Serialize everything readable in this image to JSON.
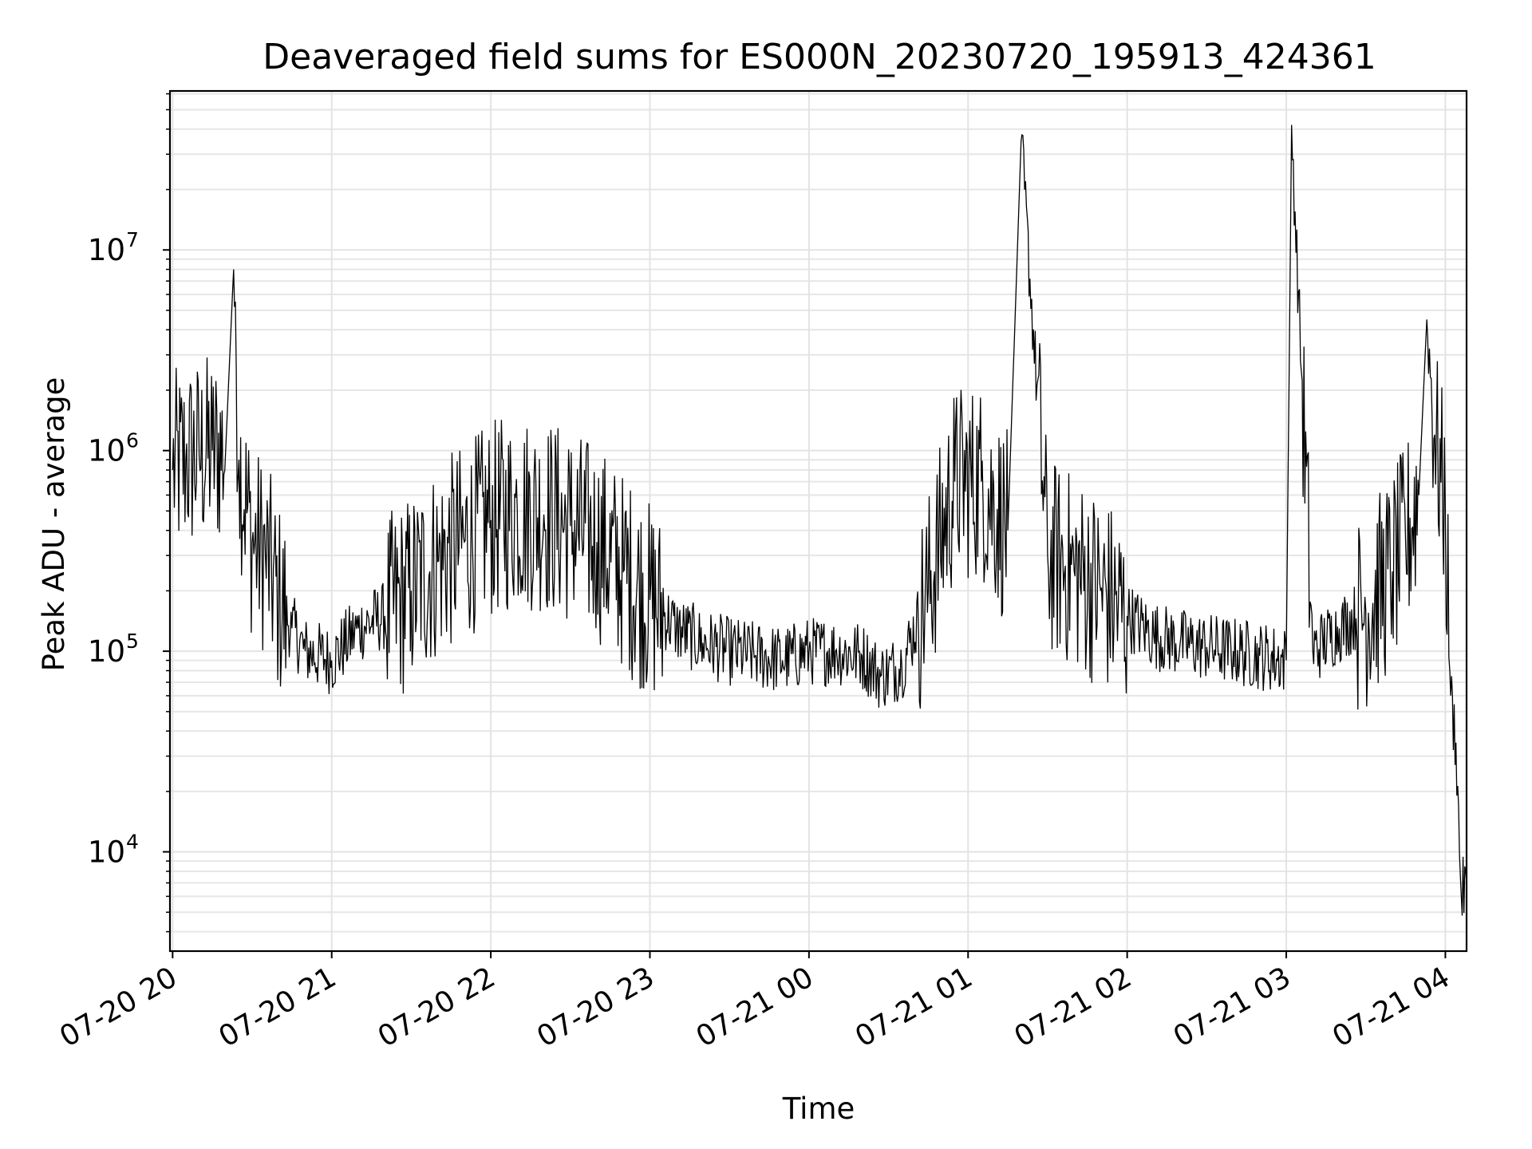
{
  "chart_data": {
    "type": "line",
    "title": "Deaveraged field sums for ES000N_20230720_195913_424361",
    "xlabel": "Time",
    "ylabel": "Peak ADU - average",
    "yscale": "log",
    "ylim": [
      3200,
      62000000
    ],
    "xlim": [
      "07-20 19:59",
      "07-21 04:08"
    ],
    "grid": true,
    "line_color": "#000000",
    "x_ticks": [
      "07-20 20",
      "07-20 21",
      "07-20 22",
      "07-20 23",
      "07-21 00",
      "07-21 01",
      "07-21 02",
      "07-21 03",
      "07-21 04"
    ],
    "y_ticks": [
      {
        "base": "10",
        "exp": "4",
        "value": 10000
      },
      {
        "base": "10",
        "exp": "5",
        "value": 100000
      },
      {
        "base": "10",
        "exp": "6",
        "value": 1000000
      },
      {
        "base": "10",
        "exp": "7",
        "value": 10000000
      }
    ],
    "series": [
      {
        "x": [
          "07-20 20:00",
          "07-20 20:05",
          "07-20 20:10",
          "07-20 20:15",
          "07-20 20:20",
          "07-20 20:23",
          "07-20 20:25",
          "07-20 20:30",
          "07-20 20:35",
          "07-20 20:40",
          "07-20 20:45",
          "07-20 20:50",
          "07-20 21:00",
          "07-20 21:10",
          "07-20 21:20",
          "07-20 21:30",
          "07-20 21:40",
          "07-20 21:50",
          "07-20 22:00",
          "07-20 22:10",
          "07-20 22:20",
          "07-20 22:30",
          "07-20 22:40",
          "07-20 22:50",
          "07-20 23:00",
          "07-20 23:10",
          "07-20 23:20",
          "07-20 23:30",
          "07-20 23:40",
          "07-20 23:50",
          "07-21 00:00",
          "07-21 00:10",
          "07-21 00:20",
          "07-21 00:27",
          "07-21 00:35",
          "07-21 00:45",
          "07-21 00:55",
          "07-21 01:05",
          "07-21 01:15",
          "07-21 01:20",
          "07-21 01:30",
          "07-21 01:40",
          "07-21 01:50",
          "07-21 02:00",
          "07-21 02:10",
          "07-21 02:20",
          "07-21 02:30",
          "07-21 02:40",
          "07-21 02:50",
          "07-21 03:00",
          "07-21 03:02",
          "07-21 03:10",
          "07-21 03:20",
          "07-21 03:30",
          "07-21 03:40",
          "07-21 03:45",
          "07-21 03:50",
          "07-21 03:53",
          "07-21 03:56",
          "07-21 04:00",
          "07-21 04:02",
          "07-21 04:04",
          "07-21 04:06",
          "07-21 04:08"
        ],
        "y": [
          800000,
          900000,
          950000,
          1000000,
          1000000,
          8000000,
          900000,
          350000,
          300000,
          180000,
          130000,
          100000,
          90000,
          130000,
          150000,
          200000,
          280000,
          350000,
          450000,
          500000,
          480000,
          420000,
          350000,
          250000,
          180000,
          130000,
          110000,
          100000,
          95000,
          90000,
          100000,
          100000,
          95000,
          75000,
          85000,
          200000,
          700000,
          700000,
          400000,
          35000000,
          300000,
          250000,
          200000,
          150000,
          120000,
          110000,
          105000,
          100000,
          95000,
          90000,
          42000000,
          100000,
          130000,
          160000,
          250000,
          350000,
          600000,
          4500000,
          1200000,
          500000,
          60000,
          35000,
          6000,
          7000
        ]
      }
    ]
  }
}
